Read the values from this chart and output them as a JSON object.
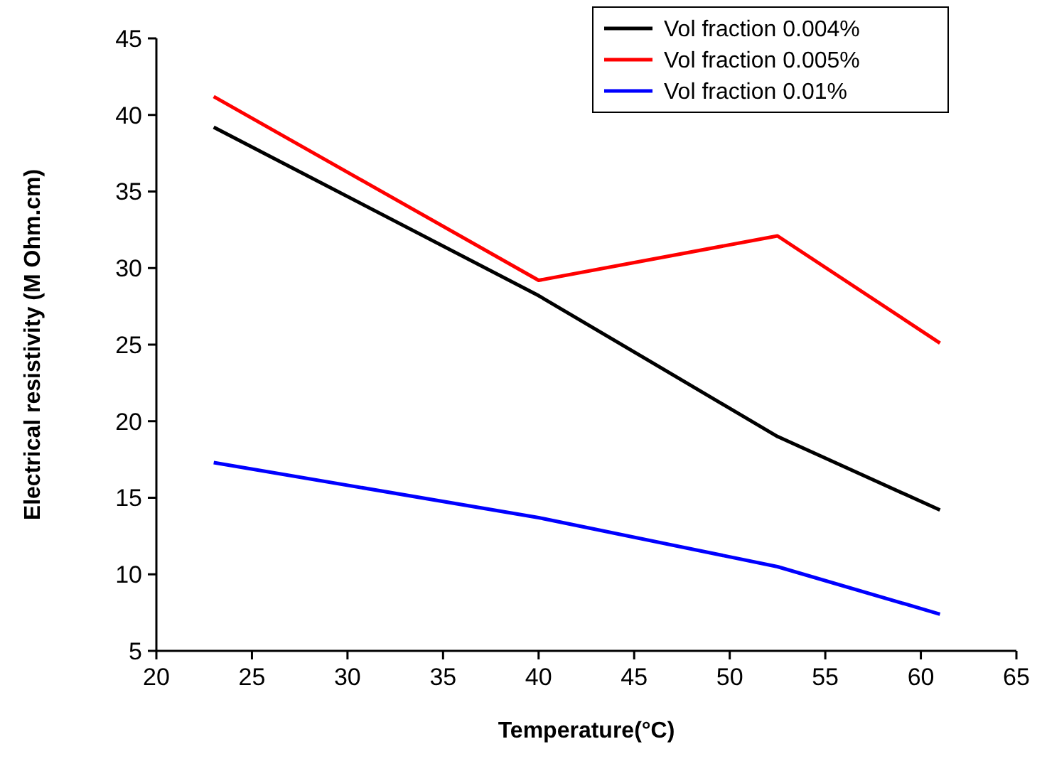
{
  "chart_data": {
    "type": "line",
    "xlabel": "Temperature(°C)",
    "ylabel": "Electrical resistivity (M Ohm.cm)",
    "x": [
      23,
      40,
      52.5,
      61
    ],
    "series": [
      {
        "name": "Vol fraction 0.004%",
        "color": "#000000",
        "values": [
          39.2,
          28.2,
          19,
          14.2
        ]
      },
      {
        "name": "Vol fraction 0.005%",
        "color": "#ff0000",
        "values": [
          41.2,
          29.2,
          32.1,
          25.1
        ]
      },
      {
        "name": "Vol fraction 0.01%",
        "color": "#0000ff",
        "values": [
          17.3,
          13.7,
          10.5,
          7.4
        ]
      }
    ],
    "xlim": [
      20,
      65
    ],
    "xticks": [
      20,
      25,
      30,
      35,
      40,
      45,
      50,
      55,
      60,
      65
    ],
    "ylim": [
      5,
      45
    ],
    "yticks": [
      5,
      10,
      15,
      20,
      25,
      30,
      35,
      40,
      45
    ],
    "grid": false,
    "legend": "top right",
    "marker": "none",
    "line_style": "solid"
  }
}
